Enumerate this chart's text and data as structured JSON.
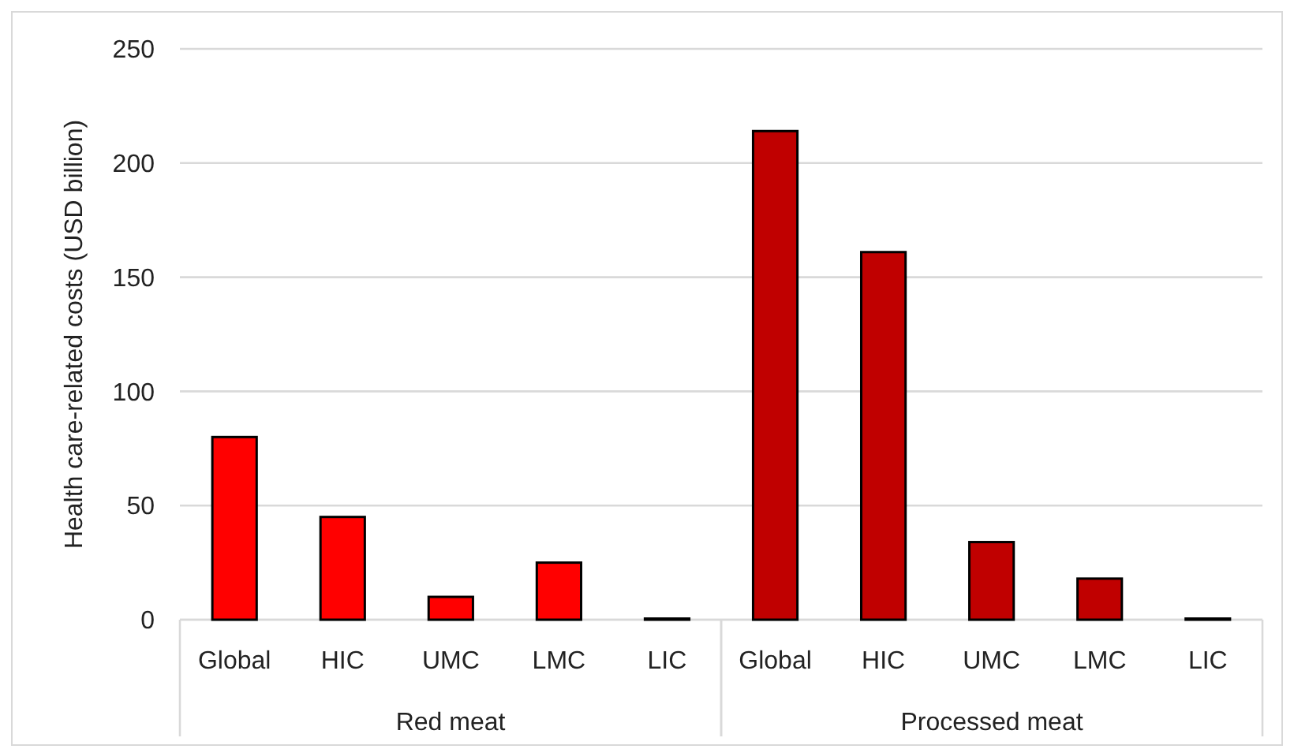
{
  "chart_data": {
    "type": "bar",
    "ylabel": "Health care-related costs (USD billion)",
    "categories": [
      "Global",
      "HIC",
      "UMC",
      "LMC",
      "LIC",
      "Global",
      "HIC",
      "UMC",
      "LMC",
      "LIC"
    ],
    "series": [
      {
        "color": "#ff0000",
        "values": [
          80,
          45,
          10,
          25,
          0.5,
          null,
          null,
          null,
          null,
          null
        ]
      },
      {
        "color": "#c00000",
        "values": [
          null,
          null,
          null,
          null,
          null,
          214,
          161,
          34,
          18,
          0.5
        ]
      }
    ],
    "ylim": [
      0,
      250
    ],
    "yticks": [
      0,
      50,
      100,
      150,
      200,
      250
    ],
    "grid": "y",
    "annotations": [
      "Red meat",
      "Processed meat"
    ]
  }
}
